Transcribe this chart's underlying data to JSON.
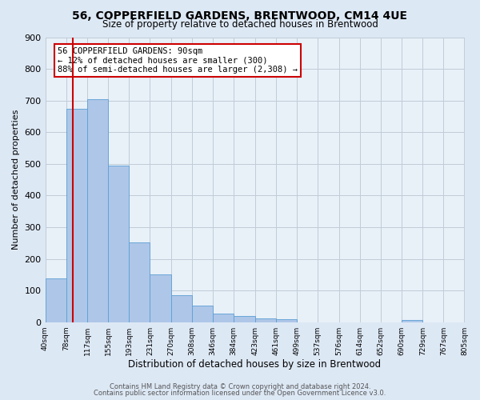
{
  "title": "56, COPPERFIELD GARDENS, BRENTWOOD, CM14 4UE",
  "subtitle": "Size of property relative to detached houses in Brentwood",
  "xlabel": "Distribution of detached houses by size in Brentwood",
  "ylabel": "Number of detached properties",
  "bin_edges": [
    40,
    78,
    117,
    155,
    193,
    231,
    270,
    308,
    346,
    384,
    423,
    461,
    499,
    537,
    576,
    614,
    652,
    690,
    729,
    767,
    805
  ],
  "bar_heights": [
    138,
    675,
    705,
    495,
    253,
    150,
    85,
    52,
    28,
    20,
    12,
    10,
    0,
    0,
    0,
    0,
    0,
    8,
    0,
    0
  ],
  "bar_color": "#aec6e8",
  "bar_edge_color": "#5a9fd4",
  "property_size": 90,
  "red_line_x": 90,
  "annotation_line1": "56 COPPERFIELD GARDENS: 90sqm",
  "annotation_line2": "← 12% of detached houses are smaller (300)",
  "annotation_line3": "88% of semi-detached houses are larger (2,308) →",
  "annotation_box_color": "#cc0000",
  "ylim": [
    0,
    900
  ],
  "yticks": [
    0,
    100,
    200,
    300,
    400,
    500,
    600,
    700,
    800,
    900
  ],
  "footnote1": "Contains HM Land Registry data © Crown copyright and database right 2024.",
  "footnote2": "Contains public sector information licensed under the Open Government Licence v3.0.",
  "bg_color": "#dde8f5",
  "plot_bg_color": "#e8f0f8",
  "grid_color": "#c0ccd8"
}
